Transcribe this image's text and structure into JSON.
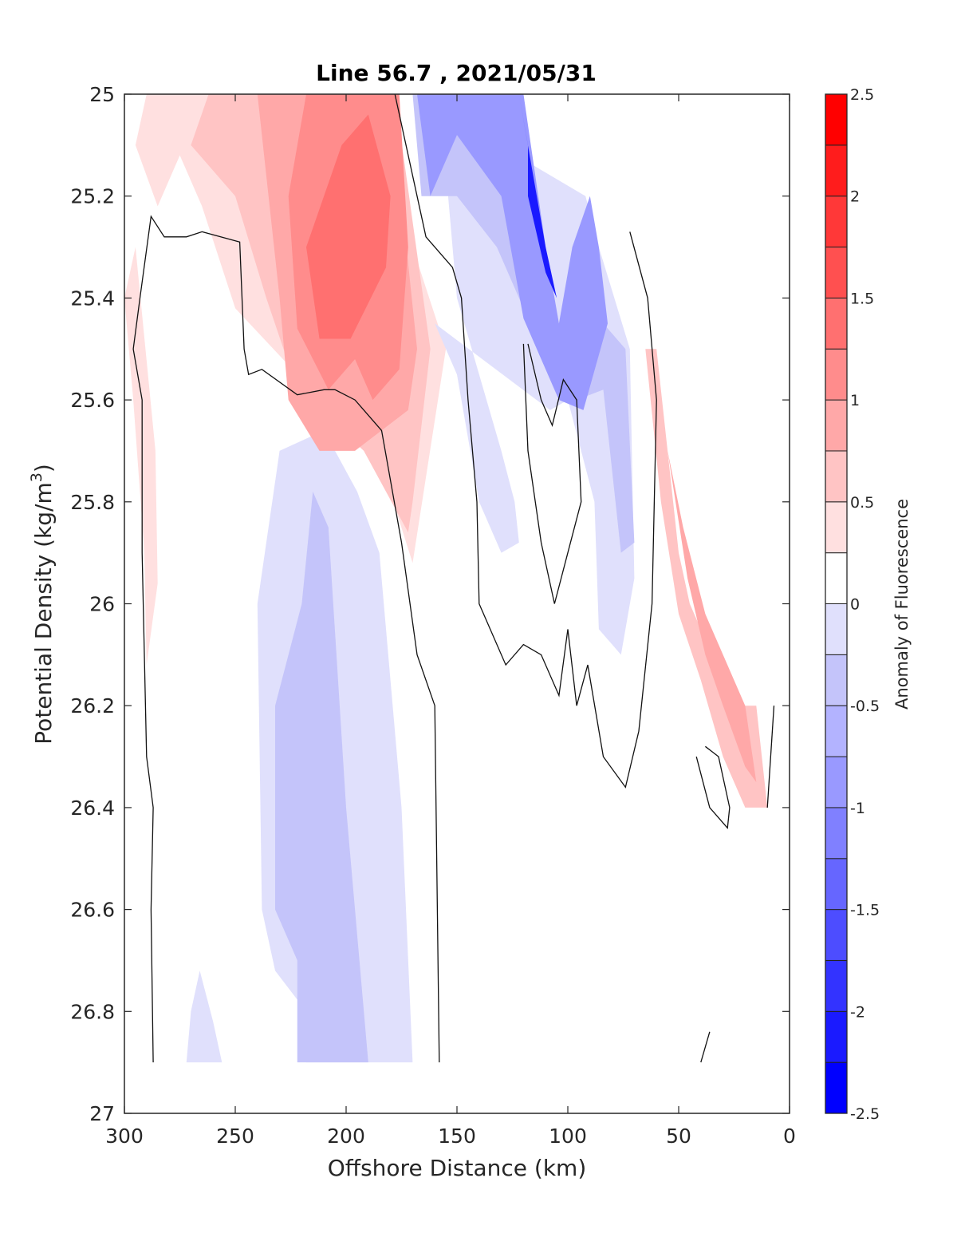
{
  "chart_data": {
    "type": "heatmap",
    "subtype": "filled-contour",
    "title": "Line 56.7 , 2021/05/31",
    "xlabel": "Offshore Distance (km)",
    "ylabel": "Potential Density (kg/m3)",
    "ylabel_parts": {
      "main": "Potential Density (kg/m",
      "sup": "3",
      "end": ")"
    },
    "xlim": [
      300,
      0
    ],
    "ylim": [
      25,
      27
    ],
    "y_reversed": true,
    "x_reversed": true,
    "x_ticks": [
      300,
      250,
      200,
      150,
      100,
      50,
      0
    ],
    "x_tick_labels": [
      "300",
      "250",
      "200",
      "150",
      "100",
      "50",
      "0"
    ],
    "y_ticks": [
      25,
      25.2,
      25.4,
      25.6,
      25.8,
      26,
      26.2,
      26.4,
      26.6,
      26.8,
      27
    ],
    "y_tick_labels": [
      "25",
      "25.2",
      "25.4",
      "25.6",
      "25.8",
      "26",
      "26.2",
      "26.4",
      "26.6",
      "26.8",
      "27"
    ],
    "grid": false,
    "colorbar": {
      "label": "Anomaly of Fluorescence",
      "range": [
        -2.5,
        2.5
      ],
      "step": 0.25,
      "ticks": [
        2.5,
        2,
        1.5,
        1,
        0.5,
        0,
        -0.5,
        -1,
        -1.5,
        -2,
        -2.5
      ],
      "tick_labels": [
        "2.5",
        "2",
        "1.5",
        "1",
        "0.5",
        "0",
        "-0.5",
        "-1",
        "-1.5",
        "-2",
        "-2.5"
      ],
      "placement": "right",
      "colors_low_to_high": [
        "#0000ff",
        "#1a1aff",
        "#3333ff",
        "#4d4dff",
        "#6666ff",
        "#8080ff",
        "#9999ff",
        "#b3b3ff",
        "#c4c4fa",
        "#e0e0fc",
        "#ffffff",
        "#ffffff",
        "#ffe0e0",
        "#ffc4c4",
        "#ffa8a8",
        "#ff8c8c",
        "#ff7070",
        "#ff5050",
        "#ff3838",
        "#ff1c1c",
        "#ff0000"
      ]
    },
    "regions": [
      {
        "name": "positive-anomaly-core",
        "level": 1.25,
        "polygon": [
          [
            202,
            25.1
          ],
          [
            190,
            25.04
          ],
          [
            180,
            25.2
          ],
          [
            182,
            25.34
          ],
          [
            198,
            25.48
          ],
          [
            212,
            25.48
          ],
          [
            218,
            25.3
          ]
        ]
      },
      {
        "name": "positive-anomaly-inner",
        "level": 1.0,
        "polygon": [
          [
            218,
            25.0
          ],
          [
            176,
            25.0
          ],
          [
            172,
            25.3
          ],
          [
            176,
            25.54
          ],
          [
            188,
            25.6
          ],
          [
            196,
            25.52
          ],
          [
            208,
            25.58
          ],
          [
            222,
            25.46
          ],
          [
            226,
            25.2
          ]
        ]
      },
      {
        "name": "positive-anomaly-mid",
        "level": 0.75,
        "polygon": [
          [
            240,
            25.0
          ],
          [
            180,
            25.0
          ],
          [
            168,
            25.5
          ],
          [
            172,
            25.62
          ],
          [
            196,
            25.7
          ],
          [
            212,
            25.7
          ],
          [
            226,
            25.6
          ],
          [
            230,
            25.4
          ]
        ]
      },
      {
        "name": "positive-anomaly-outer",
        "level": 0.5,
        "polygon": [
          [
            262,
            25.0
          ],
          [
            178,
            25.0
          ],
          [
            162,
            25.5
          ],
          [
            170,
            25.8
          ],
          [
            172,
            25.86
          ],
          [
            192,
            25.7
          ],
          [
            222,
            25.58
          ],
          [
            236,
            25.4
          ],
          [
            250,
            25.2
          ],
          [
            270,
            25.1
          ]
        ]
      },
      {
        "name": "positive-anomaly-edge",
        "level": 0.25,
        "polygon": [
          [
            290,
            25.0
          ],
          [
            180,
            25.0
          ],
          [
            170,
            25.3
          ],
          [
            155,
            25.5
          ],
          [
            170,
            25.92
          ],
          [
            186,
            25.7
          ],
          [
            200,
            25.58
          ],
          [
            222,
            25.55
          ],
          [
            250,
            25.42
          ],
          [
            265,
            25.22
          ],
          [
            275,
            25.12
          ],
          [
            285,
            25.22
          ],
          [
            295,
            25.1
          ]
        ]
      },
      {
        "name": "western-positive-strip",
        "level": 0.25,
        "polygon": [
          [
            300,
            25.4
          ],
          [
            296,
            25.6
          ],
          [
            291,
            25.9
          ],
          [
            290,
            26.12
          ],
          [
            285,
            25.96
          ],
          [
            286,
            25.7
          ],
          [
            295,
            25.3
          ]
        ]
      },
      {
        "name": "blue-core-deep",
        "level": -2.25,
        "polygon": [
          [
            122,
            25.0
          ],
          [
            118,
            25.1
          ],
          [
            118,
            25.2
          ],
          [
            110,
            25.35
          ],
          [
            105,
            25.4
          ],
          [
            110,
            25.3
          ]
        ]
      },
      {
        "name": "blue-upper-band",
        "level": -1.0,
        "polygon": [
          [
            168,
            25.0
          ],
          [
            140,
            25.0
          ],
          [
            120,
            25.0
          ],
          [
            110,
            25.3
          ],
          [
            104,
            25.45
          ],
          [
            98,
            25.3
          ],
          [
            90,
            25.2
          ],
          [
            86,
            25.3
          ],
          [
            82,
            25.45
          ],
          [
            93,
            25.62
          ],
          [
            104,
            25.6
          ],
          [
            112,
            25.52
          ],
          [
            120,
            25.44
          ],
          [
            130,
            25.2
          ],
          [
            150,
            25.08
          ],
          [
            162,
            25.2
          ]
        ]
      },
      {
        "name": "blue-outer-band",
        "level": -0.5,
        "polygon": [
          [
            170,
            25.0
          ],
          [
            120,
            25.0
          ],
          [
            106,
            25.5
          ],
          [
            100,
            25.55
          ],
          [
            84,
            25.45
          ],
          [
            74,
            25.5
          ],
          [
            70,
            25.88
          ],
          [
            76,
            25.9
          ],
          [
            84,
            25.58
          ],
          [
            96,
            25.6
          ],
          [
            100,
            25.5
          ],
          [
            116,
            25.46
          ],
          [
            132,
            25.3
          ],
          [
            150,
            25.2
          ],
          [
            166,
            25.2
          ]
        ]
      },
      {
        "name": "blue-edge-band",
        "level": -0.25,
        "polygon": [
          [
            170,
            25.0
          ],
          [
            158,
            25.0
          ],
          [
            150,
            25.4
          ],
          [
            140,
            25.55
          ],
          [
            130,
            25.7
          ],
          [
            124,
            25.8
          ],
          [
            122,
            25.88
          ],
          [
            130,
            25.9
          ],
          [
            140,
            25.8
          ],
          [
            150,
            25.55
          ],
          [
            160,
            25.45
          ],
          [
            108,
            25.62
          ],
          [
            100,
            25.6
          ],
          [
            88,
            25.8
          ],
          [
            86,
            26.05
          ],
          [
            76,
            26.1
          ],
          [
            70,
            25.95
          ],
          [
            72,
            25.5
          ],
          [
            86,
            25.3
          ],
          [
            92,
            25.2
          ]
        ]
      },
      {
        "name": "mid-blue-column-outer",
        "level": -0.25,
        "polygon": [
          [
            230,
            25.7
          ],
          [
            210,
            25.66
          ],
          [
            195,
            25.78
          ],
          [
            185,
            25.9
          ],
          [
            175,
            26.4
          ],
          [
            170,
            26.9
          ],
          [
            180,
            26.9
          ],
          [
            200,
            26.9
          ],
          [
            218,
            26.9
          ],
          [
            218,
            26.8
          ],
          [
            232,
            26.72
          ],
          [
            238,
            26.6
          ],
          [
            240,
            26.0
          ]
        ]
      },
      {
        "name": "mid-blue-column-inner",
        "level": -0.5,
        "polygon": [
          [
            215,
            25.78
          ],
          [
            208,
            25.85
          ],
          [
            200,
            26.4
          ],
          [
            190,
            26.9
          ],
          [
            200,
            26.9
          ],
          [
            222,
            26.9
          ],
          [
            222,
            26.7
          ],
          [
            232,
            26.6
          ],
          [
            232,
            26.2
          ],
          [
            220,
            26.0
          ]
        ]
      },
      {
        "name": "small-blue-tongue",
        "level": -0.25,
        "polygon": [
          [
            266,
            26.72
          ],
          [
            270,
            26.8
          ],
          [
            272,
            26.9
          ],
          [
            256,
            26.9
          ],
          [
            260,
            26.82
          ]
        ]
      },
      {
        "name": "nearshore-positive-band",
        "level": 0.5,
        "polygon": [
          [
            65,
            25.5
          ],
          [
            60,
            25.5
          ],
          [
            50,
            25.9
          ],
          [
            45,
            26.0
          ],
          [
            40,
            26.05
          ],
          [
            35,
            26.1
          ],
          [
            25,
            26.2
          ],
          [
            15,
            26.2
          ],
          [
            10,
            26.4
          ],
          [
            20,
            26.4
          ],
          [
            30,
            26.3
          ],
          [
            40,
            26.15
          ],
          [
            50,
            26.02
          ],
          [
            58,
            25.8
          ]
        ]
      },
      {
        "name": "nearshore-positive-core",
        "level": 0.75,
        "polygon": [
          [
            55,
            25.7
          ],
          [
            48,
            25.85
          ],
          [
            38,
            26.02
          ],
          [
            30,
            26.1
          ],
          [
            20,
            26.2
          ],
          [
            15,
            26.35
          ],
          [
            20,
            26.32
          ],
          [
            30,
            26.2
          ],
          [
            38,
            26.1
          ],
          [
            46,
            25.95
          ]
        ]
      }
    ],
    "zero_contours": [
      {
        "name": "western-zero-contour",
        "points": [
          [
            287,
            26.9
          ],
          [
            288,
            26.6
          ],
          [
            287,
            26.4
          ],
          [
            290,
            26.3
          ],
          [
            292,
            25.9
          ],
          [
            292,
            25.6
          ],
          [
            296,
            25.5
          ],
          [
            293,
            25.4
          ],
          [
            288,
            25.24
          ],
          [
            282,
            25.28
          ],
          [
            272,
            25.28
          ],
          [
            265,
            25.27
          ],
          [
            248,
            25.29
          ],
          [
            246,
            25.5
          ],
          [
            244,
            25.55
          ],
          [
            238,
            25.54
          ],
          [
            222,
            25.59
          ],
          [
            210,
            25.58
          ],
          [
            205,
            25.58
          ],
          [
            196,
            25.6
          ],
          [
            184,
            25.66
          ],
          [
            175,
            25.88
          ],
          [
            168,
            26.1
          ],
          [
            160,
            26.2
          ],
          [
            158,
            26.9
          ]
        ]
      },
      {
        "name": "main-zero-contour",
        "points": [
          [
            178,
            25.0
          ],
          [
            164,
            25.28
          ],
          [
            152,
            25.34
          ],
          [
            148,
            25.4
          ],
          [
            145,
            25.6
          ],
          [
            141,
            25.8
          ],
          [
            140,
            26.0
          ],
          [
            128,
            26.12
          ],
          [
            120,
            26.08
          ],
          [
            112,
            26.1
          ],
          [
            104,
            26.18
          ],
          [
            100,
            26.05
          ],
          [
            96,
            26.2
          ],
          [
            91,
            26.12
          ],
          [
            84,
            26.3
          ],
          [
            74,
            26.36
          ],
          [
            68,
            26.25
          ],
          [
            62,
            26.0
          ],
          [
            60,
            25.6
          ],
          [
            64,
            25.4
          ],
          [
            72,
            25.27
          ]
        ]
      },
      {
        "name": "inner-loop-contour",
        "points": [
          [
            118,
            25.49
          ],
          [
            112,
            25.6
          ],
          [
            107,
            25.65
          ],
          [
            102,
            25.56
          ],
          [
            96,
            25.6
          ],
          [
            94,
            25.8
          ],
          [
            100,
            25.9
          ],
          [
            106,
            26.0
          ],
          [
            112,
            25.88
          ],
          [
            118,
            25.7
          ],
          [
            120,
            25.49
          ]
        ]
      },
      {
        "name": "eastern-loop-contour",
        "points": [
          [
            38,
            26.28
          ],
          [
            32,
            26.3
          ],
          [
            27,
            26.4
          ],
          [
            28,
            26.44
          ],
          [
            36,
            26.4
          ],
          [
            42,
            26.3
          ]
        ]
      },
      {
        "name": "coast-segment-contour",
        "points": [
          [
            7,
            26.2
          ],
          [
            10,
            26.4
          ]
        ]
      },
      {
        "name": "small-segment-contour",
        "points": [
          [
            36,
            26.84
          ],
          [
            40,
            26.9
          ]
        ]
      }
    ]
  }
}
